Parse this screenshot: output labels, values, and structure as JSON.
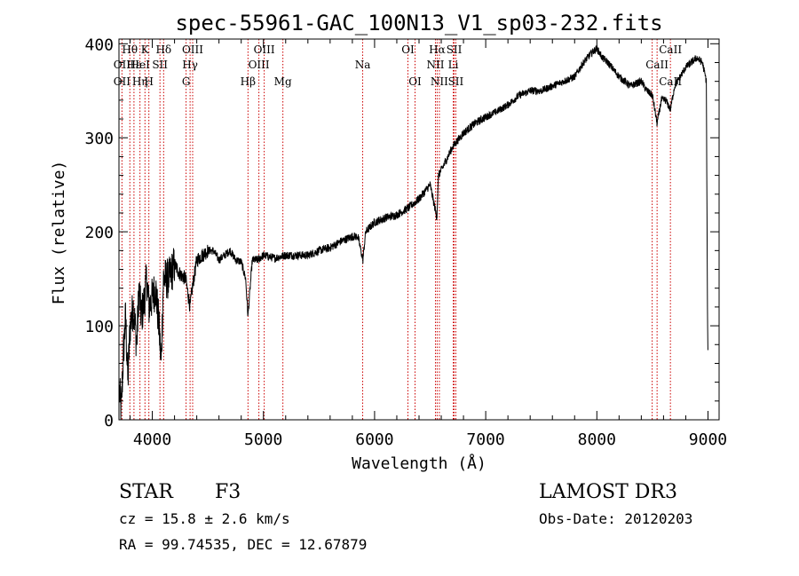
{
  "chart_data": {
    "type": "line",
    "title": "spec-55961-GAC_100N13_V1_sp03-232.fits",
    "xlabel": "Wavelength (Å)",
    "ylabel": "Flux (relative)",
    "xlim": [
      3700,
      9100
    ],
    "ylim": [
      0,
      405
    ],
    "x_ticks": [
      4000,
      5000,
      6000,
      7000,
      8000,
      9000
    ],
    "y_ticks": [
      0,
      100,
      200,
      300,
      400
    ],
    "x_ticklabels": [
      "4000",
      "5000",
      "6000",
      "7000",
      "8000",
      "9000"
    ],
    "y_ticklabels": [
      "0",
      "100",
      "200",
      "300",
      "400"
    ],
    "grid": false,
    "series": [
      {
        "name": "flux",
        "anchors": [
          [
            3705,
            30
          ],
          [
            3720,
            10
          ],
          [
            3740,
            70
          ],
          [
            3760,
            110
          ],
          [
            3780,
            40
          ],
          [
            3800,
            100
          ],
          [
            3830,
            120
          ],
          [
            3860,
            80
          ],
          [
            3880,
            140
          ],
          [
            3900,
            110
          ],
          [
            3920,
            120
          ],
          [
            3950,
            150
          ],
          [
            3970,
            120
          ],
          [
            4000,
            130
          ],
          [
            4030,
            140
          ],
          [
            4060,
            100
          ],
          [
            4080,
            60
          ],
          [
            4100,
            150
          ],
          [
            4150,
            150
          ],
          [
            4200,
            165
          ],
          [
            4250,
            155
          ],
          [
            4300,
            150
          ],
          [
            4340,
            120
          ],
          [
            4360,
            140
          ],
          [
            4400,
            170
          ],
          [
            4450,
            175
          ],
          [
            4500,
            180
          ],
          [
            4550,
            180
          ],
          [
            4600,
            170
          ],
          [
            4650,
            175
          ],
          [
            4700,
            180
          ],
          [
            4750,
            170
          ],
          [
            4800,
            168
          ],
          [
            4840,
            150
          ],
          [
            4861,
            110
          ],
          [
            4880,
            140
          ],
          [
            4900,
            170
          ],
          [
            4950,
            170
          ],
          [
            5000,
            175
          ],
          [
            5100,
            172
          ],
          [
            5200,
            175
          ],
          [
            5300,
            175
          ],
          [
            5400,
            175
          ],
          [
            5500,
            180
          ],
          [
            5600,
            183
          ],
          [
            5700,
            190
          ],
          [
            5800,
            195
          ],
          [
            5850,
            195
          ],
          [
            5895,
            170
          ],
          [
            5920,
            200
          ],
          [
            6000,
            210
          ],
          [
            6100,
            215
          ],
          [
            6200,
            218
          ],
          [
            6300,
            225
          ],
          [
            6400,
            235
          ],
          [
            6500,
            250
          ],
          [
            6560,
            215
          ],
          [
            6575,
            260
          ],
          [
            6620,
            270
          ],
          [
            6700,
            290
          ],
          [
            6800,
            305
          ],
          [
            6900,
            315
          ],
          [
            7000,
            322
          ],
          [
            7100,
            328
          ],
          [
            7200,
            335
          ],
          [
            7300,
            345
          ],
          [
            7400,
            350
          ],
          [
            7500,
            350
          ],
          [
            7600,
            355
          ],
          [
            7700,
            360
          ],
          [
            7800,
            365
          ],
          [
            7880,
            380
          ],
          [
            7950,
            390
          ],
          [
            8000,
            395
          ],
          [
            8050,
            385
          ],
          [
            8100,
            380
          ],
          [
            8200,
            365
          ],
          [
            8300,
            355
          ],
          [
            8400,
            360
          ],
          [
            8450,
            350
          ],
          [
            8500,
            345
          ],
          [
            8542,
            315
          ],
          [
            8580,
            340
          ],
          [
            8620,
            340
          ],
          [
            8662,
            330
          ],
          [
            8700,
            355
          ],
          [
            8800,
            375
          ],
          [
            8900,
            385
          ],
          [
            8950,
            380
          ],
          [
            8985,
            360
          ],
          [
            8995,
            120
          ],
          [
            9000,
            60
          ]
        ]
      }
    ],
    "line_markers": [
      {
        "label": "Hθ",
        "x": 3798,
        "row": 1
      },
      {
        "label": "OII",
        "x": 3727,
        "row": 2
      },
      {
        "label": "OII",
        "x": 3727,
        "row": 3
      },
      {
        "label": "Hε",
        "x": 3835,
        "row": 2
      },
      {
        "label": "Hη",
        "x": 3889,
        "row": 3
      },
      {
        "label": "K",
        "x": 3934,
        "row": 1
      },
      {
        "label": "HeI",
        "x": 3889,
        "row": 2
      },
      {
        "label": "H",
        "x": 3969,
        "row": 3
      },
      {
        "label": "SII",
        "x": 4069,
        "row": 2
      },
      {
        "label": "Hδ",
        "x": 4102,
        "row": 1
      },
      {
        "label": "OIII",
        "x": 4363,
        "row": 1
      },
      {
        "label": "Hγ",
        "x": 4340,
        "row": 2
      },
      {
        "label": "G",
        "x": 4304,
        "row": 3
      },
      {
        "label": "Hβ",
        "x": 4861,
        "row": 3
      },
      {
        "label": "OIII",
        "x": 5007,
        "row": 1
      },
      {
        "label": "OIII",
        "x": 4959,
        "row": 2
      },
      {
        "label": "Mg",
        "x": 5175,
        "row": 3
      },
      {
        "label": "Na",
        "x": 5893,
        "row": 2
      },
      {
        "label": "OI",
        "x": 6300,
        "row": 1
      },
      {
        "label": "OI",
        "x": 6364,
        "row": 3
      },
      {
        "label": "Hα",
        "x": 6563,
        "row": 1
      },
      {
        "label": "NII",
        "x": 6548,
        "row": 2
      },
      {
        "label": "NII",
        "x": 6583,
        "row": 3
      },
      {
        "label": "SII",
        "x": 6716,
        "row": 1
      },
      {
        "label": "Li",
        "x": 6708,
        "row": 2
      },
      {
        "label": "SII",
        "x": 6731,
        "row": 3
      },
      {
        "label": "CaII",
        "x": 8662,
        "row": 1
      },
      {
        "label": "CaII",
        "x": 8542,
        "row": 2
      },
      {
        "label": "CaII",
        "x": 8662,
        "row": 3
      }
    ],
    "marker_line_x": [
      3727,
      3798,
      3835,
      3889,
      3934,
      3969,
      4069,
      4102,
      4304,
      4340,
      4363,
      4861,
      4959,
      5007,
      5175,
      5893,
      6300,
      6364,
      6548,
      6563,
      6583,
      6708,
      6716,
      6731,
      8498,
      8542,
      8662
    ],
    "marker_color": "#cc0000",
    "line_color": "#000000"
  },
  "info": {
    "object_class": "STAR",
    "subclass": "F3",
    "survey": "LAMOST DR3",
    "cz": "cz = 15.8 ± 2.6 km/s",
    "obs_date": "Obs-Date: 20120203",
    "coords": "RA =  99.74535, DEC =  12.67879"
  }
}
